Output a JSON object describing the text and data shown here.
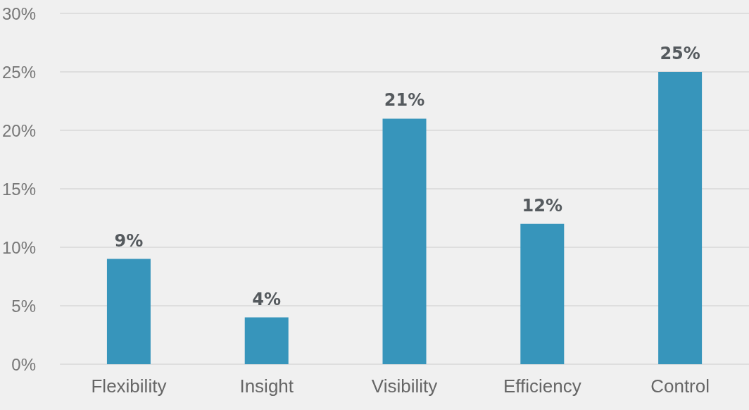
{
  "chart_data": {
    "type": "bar",
    "categories": [
      "Flexibility",
      "Insight",
      "Visibility",
      "Efficiency",
      "Control"
    ],
    "values": [
      9,
      4,
      21,
      12,
      25
    ],
    "value_labels": [
      "9%",
      "4%",
      "21%",
      "12%",
      "25%"
    ],
    "color": "#3795bb",
    "ylim": [
      0,
      30
    ],
    "yticks": [
      {
        "value": 0,
        "label": "0%"
      },
      {
        "value": 5,
        "label": "5%"
      },
      {
        "value": 10,
        "label": "10%"
      },
      {
        "value": 15,
        "label": "15%"
      },
      {
        "value": 20,
        "label": "20%"
      },
      {
        "value": 25,
        "label": "25%"
      },
      {
        "value": 30,
        "label": "30%"
      }
    ],
    "grid": "y"
  }
}
